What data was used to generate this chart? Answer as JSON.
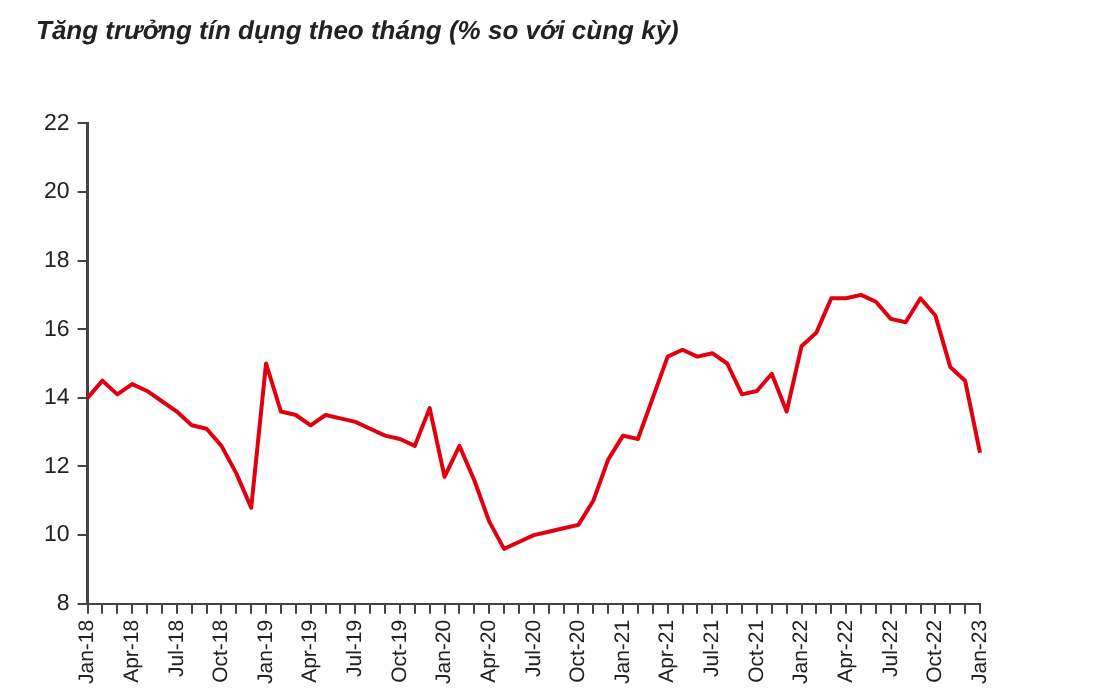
{
  "chart_data": {
    "type": "line",
    "title": "Tăng trưởng tín dụng theo tháng (% so với cùng kỳ)",
    "categories": [
      "Jan-18",
      null,
      null,
      "Apr-18",
      null,
      null,
      "Jul-18",
      null,
      null,
      "Oct-18",
      null,
      null,
      "Jan-19",
      null,
      null,
      "Apr-19",
      null,
      null,
      "Jul-19",
      null,
      null,
      "Oct-19",
      null,
      null,
      "Jan-20",
      null,
      null,
      "Apr-20",
      null,
      null,
      "Jul-20",
      null,
      null,
      "Oct-20",
      null,
      null,
      "Jan-21",
      null,
      null,
      "Apr-21",
      null,
      null,
      "Jul-21",
      null,
      null,
      "Oct-21",
      null,
      null,
      "Jan-22",
      null,
      null,
      "Apr-22",
      null,
      null,
      "Jul-22",
      null,
      null,
      "Oct-22",
      null,
      null,
      "Jan-23"
    ],
    "series": [
      {
        "color": "#e00010",
        "values": [
          14.0,
          14.5,
          14.1,
          14.4,
          14.2,
          13.9,
          13.6,
          13.2,
          13.1,
          12.6,
          11.8,
          10.8,
          15.0,
          13.6,
          13.5,
          13.2,
          13.5,
          13.4,
          13.3,
          13.1,
          12.9,
          12.8,
          12.6,
          13.7,
          11.7,
          12.6,
          11.6,
          10.4,
          9.6,
          9.8,
          10.0,
          10.1,
          10.2,
          10.3,
          11.0,
          12.2,
          12.9,
          12.8,
          14.0,
          15.2,
          15.4,
          15.2,
          15.3,
          15.0,
          14.1,
          14.2,
          14.7,
          13.6,
          15.5,
          15.9,
          16.9,
          16.9,
          17.0,
          16.8,
          16.3,
          16.2,
          16.9,
          16.4,
          14.9,
          14.5,
          12.4
        ]
      }
    ],
    "ylim": [
      8,
      22
    ],
    "yticks": [
      8,
      10,
      12,
      14,
      16,
      18,
      20,
      22
    ],
    "grid": false,
    "legend": false,
    "marker": "none",
    "line_style": "solid"
  }
}
